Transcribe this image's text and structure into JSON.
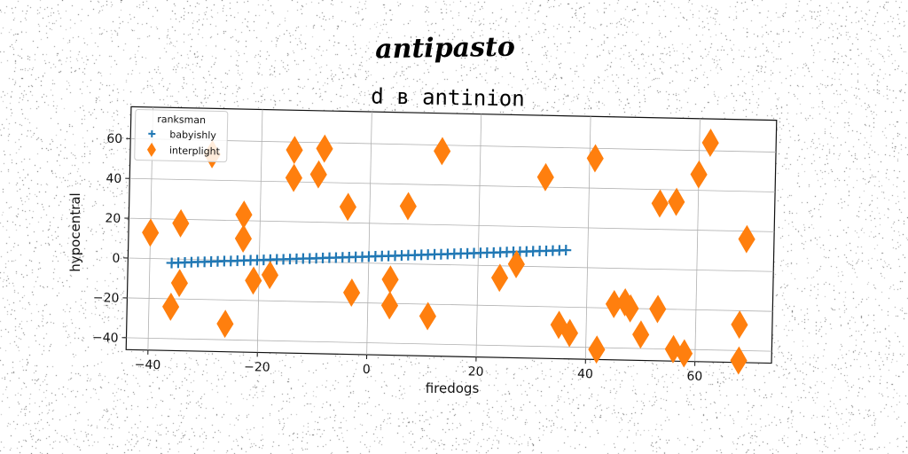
{
  "heading": "antipasto",
  "chart_data": {
    "type": "scatter",
    "title": "d в antinion",
    "xlabel": "firedogs",
    "ylabel": "hypocentral",
    "xlim": [
      -44,
      74
    ],
    "ylim": [
      -46,
      76
    ],
    "xticks": [
      -40,
      -20,
      0,
      20,
      40,
      60
    ],
    "yticks": [
      -40,
      -20,
      0,
      20,
      40,
      60
    ],
    "xtick_labels": [
      "−40",
      "−20",
      "0",
      "20",
      "40",
      "60"
    ],
    "ytick_labels": [
      "−40",
      "−20",
      "0",
      "20",
      "40",
      "60"
    ],
    "grid": true,
    "legend": {
      "title": "ranksman",
      "placement": "upper-left"
    },
    "series": [
      {
        "name": "babyishly",
        "marker": "plus",
        "color": "#1f77b4",
        "points": [
          [
            -36,
            -2.0
          ],
          [
            -34.8,
            -1.8
          ],
          [
            -33.6,
            -1.6
          ],
          [
            -32.4,
            -1.4
          ],
          [
            -31.2,
            -1.2
          ],
          [
            -30,
            -1.1
          ],
          [
            -28.8,
            -0.9
          ],
          [
            -27.6,
            -0.7
          ],
          [
            -26.4,
            -0.5
          ],
          [
            -25.2,
            -0.4
          ],
          [
            -24,
            -0.2
          ],
          [
            -22.8,
            0.0
          ],
          [
            -21.6,
            0.2
          ],
          [
            -20.4,
            0.3
          ],
          [
            -19.2,
            0.5
          ],
          [
            -18,
            0.7
          ],
          [
            -16.8,
            0.9
          ],
          [
            -15.6,
            1.0
          ],
          [
            -14.4,
            1.2
          ],
          [
            -13.2,
            1.4
          ],
          [
            -12,
            1.6
          ],
          [
            -10.8,
            1.7
          ],
          [
            -9.6,
            1.9
          ],
          [
            -8.4,
            2.1
          ],
          [
            -7.2,
            2.3
          ],
          [
            -6,
            2.4
          ],
          [
            -4.8,
            2.6
          ],
          [
            -3.6,
            2.8
          ],
          [
            -2.4,
            3.0
          ],
          [
            -1.2,
            3.1
          ],
          [
            0,
            3.3
          ],
          [
            1.2,
            3.5
          ],
          [
            2.4,
            3.7
          ],
          [
            3.6,
            3.8
          ],
          [
            4.8,
            4.0
          ],
          [
            6,
            4.2
          ],
          [
            7.2,
            4.4
          ],
          [
            8.4,
            4.5
          ],
          [
            9.6,
            4.7
          ],
          [
            10.8,
            4.9
          ],
          [
            12,
            5.1
          ],
          [
            13.2,
            5.2
          ],
          [
            14.4,
            5.4
          ],
          [
            15.6,
            5.6
          ],
          [
            16.8,
            5.8
          ],
          [
            18,
            5.9
          ],
          [
            19.2,
            6.1
          ],
          [
            20.4,
            6.3
          ],
          [
            21.6,
            6.5
          ],
          [
            22.8,
            6.6
          ],
          [
            24,
            6.8
          ],
          [
            25.2,
            7.0
          ],
          [
            26.4,
            7.2
          ],
          [
            27.6,
            7.3
          ],
          [
            28.8,
            7.5
          ],
          [
            30,
            7.7
          ],
          [
            31.2,
            7.9
          ],
          [
            32.4,
            8.0
          ],
          [
            33.6,
            8.2
          ],
          [
            34.8,
            8.4
          ],
          [
            36,
            8.6
          ]
        ]
      },
      {
        "name": "interplight",
        "marker": "thin_diamond",
        "color": "#ff7f0e",
        "points": [
          [
            -40,
            13
          ],
          [
            -36,
            -24
          ],
          [
            -34.5,
            18
          ],
          [
            -34.5,
            -12
          ],
          [
            -29,
            53
          ],
          [
            -26,
            -32
          ],
          [
            -23,
            23
          ],
          [
            -23,
            11
          ],
          [
            -21,
            -10
          ],
          [
            -18,
            -7
          ],
          [
            -14,
            56
          ],
          [
            -14,
            42
          ],
          [
            -9.5,
            44
          ],
          [
            -8.5,
            57
          ],
          [
            -4,
            28
          ],
          [
            -3,
            -15
          ],
          [
            4,
            -8
          ],
          [
            4,
            -21
          ],
          [
            7,
            29
          ],
          [
            11,
            -26
          ],
          [
            13,
            57
          ],
          [
            24,
            -6
          ],
          [
            27,
            1
          ],
          [
            32,
            45
          ],
          [
            35,
            -29
          ],
          [
            37,
            -33
          ],
          [
            41,
            55
          ],
          [
            42,
            -41
          ],
          [
            45,
            -18
          ],
          [
            47,
            -17
          ],
          [
            48,
            -20
          ],
          [
            50,
            -33
          ],
          [
            53,
            -20
          ],
          [
            53,
            33
          ],
          [
            56,
            -40
          ],
          [
            56,
            34
          ],
          [
            58,
            -42
          ],
          [
            60,
            48
          ],
          [
            62,
            64
          ],
          [
            68,
            -27
          ],
          [
            68,
            -45
          ],
          [
            69,
            16
          ]
        ]
      }
    ]
  }
}
